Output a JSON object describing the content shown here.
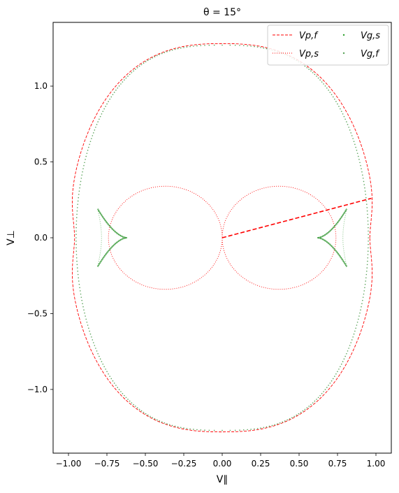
{
  "chart_data": {
    "type": "line",
    "title": "θ = 15°",
    "xlabel": "V∥",
    "ylabel": "V⊥",
    "xlim": [
      -1.1,
      1.1
    ],
    "ylim": [
      -1.42,
      1.42
    ],
    "xticks": [
      -1.0,
      -0.75,
      -0.5,
      -0.25,
      0.0,
      0.25,
      0.5,
      0.75,
      1.0
    ],
    "xtick_labels": [
      "−1.00",
      "−0.75",
      "−0.50",
      "−0.25",
      "0.00",
      "0.25",
      "0.50",
      "0.75",
      "1.00"
    ],
    "yticks": [
      -1.0,
      -0.5,
      0.0,
      0.5,
      1.0
    ],
    "ytick_labels": [
      "−1.0",
      "−0.5",
      "0.0",
      "0.5",
      "1.0"
    ],
    "grid": false,
    "legend": {
      "placement": "top-right",
      "columns": 2
    },
    "series": [
      {
        "name": "V_{p,f}",
        "label": "Vp,f",
        "style": "dashed",
        "color": "#ff0000",
        "shape": "fast-phase-speed",
        "parallel_max": 1.0,
        "perp_max": 1.28
      },
      {
        "name": "V_{p,s}",
        "label": "Vp,s",
        "style": "dotted",
        "color": "#ff0000",
        "shape": "slow-phase-speed-lobes",
        "lobe_max_parallel": 0.74,
        "lobe_max_perp": 0.34
      },
      {
        "name": "V_{g,s}",
        "label": "Vg,s",
        "style": "points",
        "color": "#2ca02c",
        "shape": "slow-group-cusps",
        "cusp_tip": [
          0.62,
          0.0
        ],
        "cusp_ends": [
          [
            0.81,
            0.19
          ],
          [
            0.81,
            -0.19
          ]
        ]
      },
      {
        "name": "V_{g,f}",
        "label": "Vg,f",
        "style": "points",
        "color": "#5aa35a",
        "shape": "fast-group-speed",
        "parallel_max": 0.99,
        "perp_max": 1.27
      }
    ],
    "annotation_line": {
      "style": "dashed",
      "color": "#ff0000",
      "from": [
        0.0,
        0.0
      ],
      "to": [
        0.97,
        0.26
      ]
    }
  }
}
